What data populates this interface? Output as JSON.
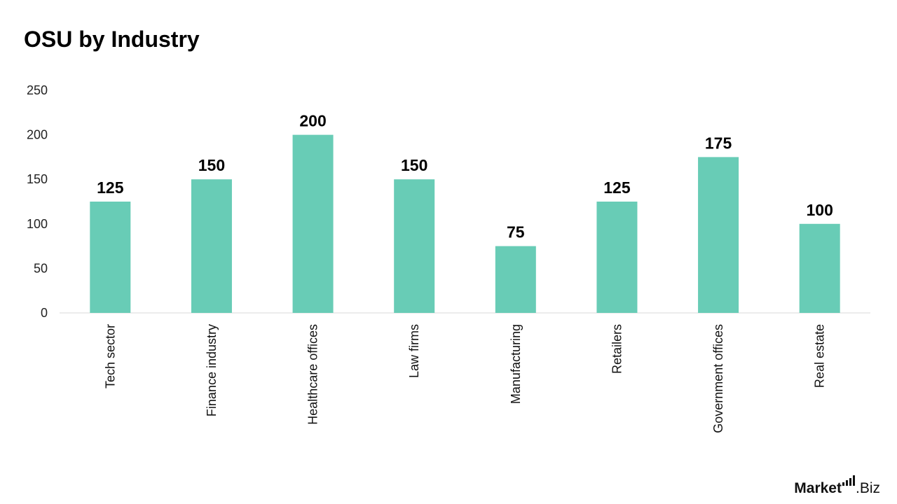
{
  "chart_data": {
    "type": "bar",
    "title": "OSU by Industry",
    "categories": [
      "Tech sector",
      "Finance industry",
      "Healthcare offices",
      "Law firms",
      "Manufacturing",
      "Retailers",
      "Government offices",
      "Real estate"
    ],
    "values": [
      125,
      150,
      200,
      150,
      75,
      125,
      175,
      100
    ],
    "yticks": [
      0,
      50,
      100,
      150,
      200,
      250
    ],
    "ylim": [
      0,
      250
    ],
    "grid": false,
    "bar_color": "#68ccb6",
    "axis_color": "#d9d9d9"
  },
  "brand": {
    "part1": "Market",
    "part2": ".Biz",
    "icon": "bar-chart-icon"
  }
}
